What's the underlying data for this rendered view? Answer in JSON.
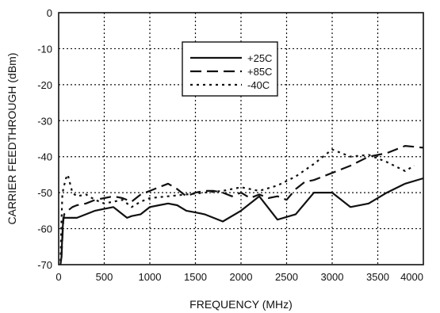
{
  "chart_data": {
    "type": "line",
    "xlabel": "FREQUENCY (MHz)",
    "ylabel": "CARRIER FEEDTHROUGH (dBm)",
    "xlim": [
      0,
      4000
    ],
    "ylim": [
      -70,
      0
    ],
    "xticks": [
      0,
      500,
      1000,
      1500,
      2000,
      2500,
      3000,
      3500,
      4000
    ],
    "yticks": [
      0,
      -10,
      -20,
      -30,
      -40,
      -50,
      -60,
      -70
    ],
    "grid": true,
    "grid_style": "dotted",
    "legend_position": "top-center",
    "series": [
      {
        "name": "+25C",
        "line_style": "solid",
        "color": "#111111",
        "x": [
          20,
          30,
          40,
          50,
          70,
          100,
          200,
          300,
          400,
          500,
          600,
          650,
          700,
          750,
          800,
          900,
          1000,
          1100,
          1200,
          1300,
          1400,
          1500,
          1600,
          1800,
          2000,
          2200,
          2400,
          2600,
          2800,
          3000,
          3200,
          3400,
          3600,
          3800,
          4000
        ],
        "y": [
          -70,
          -68,
          -62,
          -57,
          -57,
          -57,
          -57,
          -56,
          -55,
          -54.5,
          -54,
          -55,
          -56,
          -57,
          -56.5,
          -56,
          -54,
          -53.5,
          -53,
          -53.5,
          -55,
          -55.5,
          -56,
          -58,
          -55,
          -51,
          -57.5,
          -56,
          -50,
          -50,
          -54,
          -53,
          -50,
          -47.5,
          -46
        ]
      },
      {
        "name": "+85C",
        "line_style": "dashed",
        "color": "#111111",
        "x": [
          30,
          40,
          50,
          60,
          80,
          100,
          150,
          200,
          300,
          400,
          500,
          600,
          700,
          800,
          900,
          1000,
          1100,
          1200,
          1300,
          1400,
          1500,
          1600,
          1700,
          1800,
          1900,
          2000,
          2100,
          2200,
          2300,
          2400,
          2500,
          2600,
          2700,
          2800,
          3000,
          3200,
          3400,
          3600,
          3800,
          4000
        ],
        "y": [
          -68,
          -63,
          -58,
          -56,
          -55.5,
          -55,
          -54,
          -53.5,
          -53,
          -52,
          -51.5,
          -51,
          -51.5,
          -52.5,
          -50.5,
          -49.5,
          -48.5,
          -47.5,
          -49,
          -51,
          -50,
          -49.5,
          -49.5,
          -50,
          -51,
          -50,
          -51.5,
          -50.5,
          -51.5,
          -51,
          -52,
          -49,
          -47,
          -46.5,
          -44.5,
          -42.5,
          -40,
          -39,
          -37,
          -37.5
        ]
      },
      {
        "name": "-40C",
        "line_style": "dotted",
        "color": "#111111",
        "x": [
          20,
          30,
          40,
          50,
          60,
          80,
          100,
          150,
          200,
          300,
          400,
          500,
          600,
          700,
          800,
          900,
          1000,
          1200,
          1400,
          1600,
          1800,
          2000,
          2200,
          2400,
          2600,
          2800,
          3000,
          3200,
          3400,
          3600,
          3800,
          3900
        ],
        "y": [
          -69,
          -58,
          -51,
          -49,
          -48,
          -46,
          -45,
          -50,
          -51,
          -50.5,
          -52,
          -53,
          -52.5,
          -52,
          -54,
          -52.5,
          -51.5,
          -51,
          -50.5,
          -50,
          -49.5,
          -48.5,
          -49.5,
          -48,
          -45.5,
          -42,
          -38,
          -40,
          -39.5,
          -41.5,
          -44,
          -42.5
        ]
      }
    ]
  }
}
